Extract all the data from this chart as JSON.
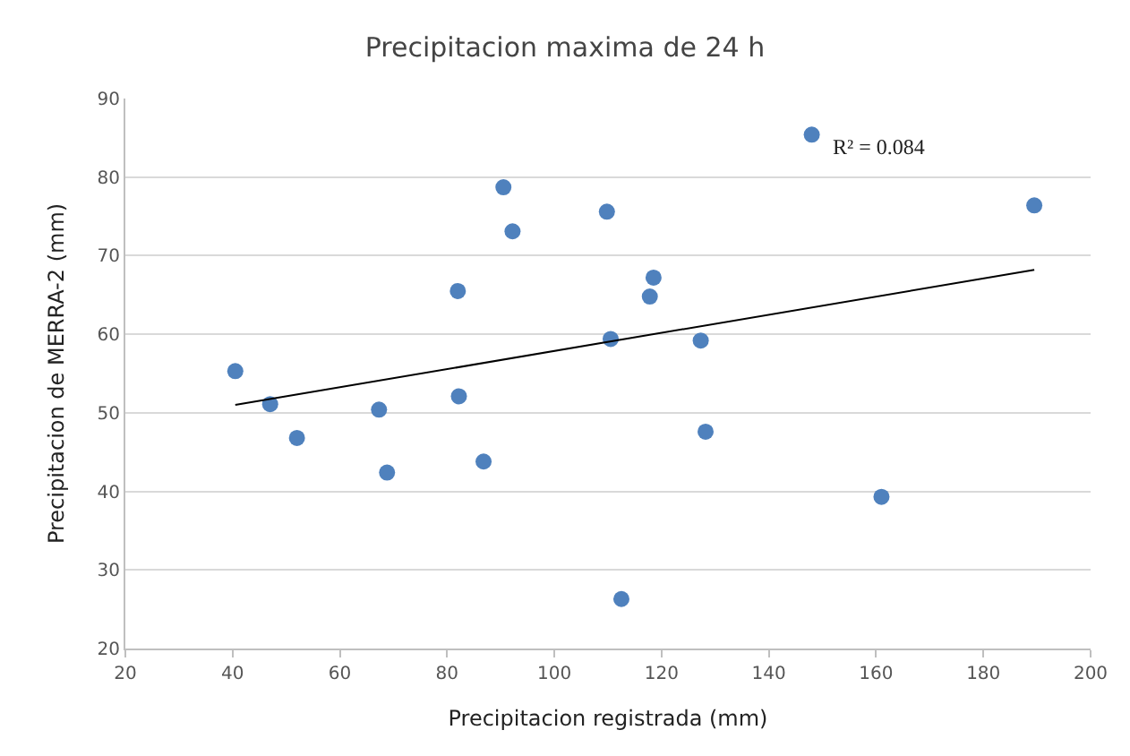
{
  "chart_data": {
    "type": "scatter",
    "title": "Precipitacion maxima de 24 h",
    "xlabel": "Precipitacion registrada (mm)",
    "ylabel": "Precipitacion de MERRA-2 (mm)",
    "series": [
      {
        "color": "#4f81bd",
        "marker": "circle",
        "x": [
          40.5,
          47,
          52,
          67.3,
          68.8,
          82,
          82.2,
          86.8,
          90.5,
          92.2,
          109.8,
          110.5,
          112.5,
          117.8,
          118.5,
          127.3,
          128.2,
          148,
          161,
          189.5
        ],
        "values": [
          55.3,
          51.1,
          46.8,
          50.4,
          42.4,
          65.5,
          52.1,
          43.8,
          78.7,
          73.1,
          75.6,
          59.4,
          26.3,
          64.8,
          67.2,
          59.2,
          47.6,
          85.4,
          39.3,
          76.4
        ]
      },
      {
        "type": "line",
        "marker": "none",
        "color": "#000000",
        "x": [
          40.5,
          189.5
        ],
        "values": [
          51.0,
          68.2
        ]
      }
    ],
    "annotations": [
      "R² = 0.084"
    ],
    "xlim": [
      20,
      200
    ],
    "xticks": [
      20,
      40,
      60,
      80,
      100,
      120,
      140,
      160,
      180,
      200
    ],
    "ylim": [
      20,
      90
    ],
    "yticks": [
      20,
      30,
      40,
      50,
      60,
      70,
      80,
      90
    ],
    "grid": "y",
    "legend": false
  }
}
